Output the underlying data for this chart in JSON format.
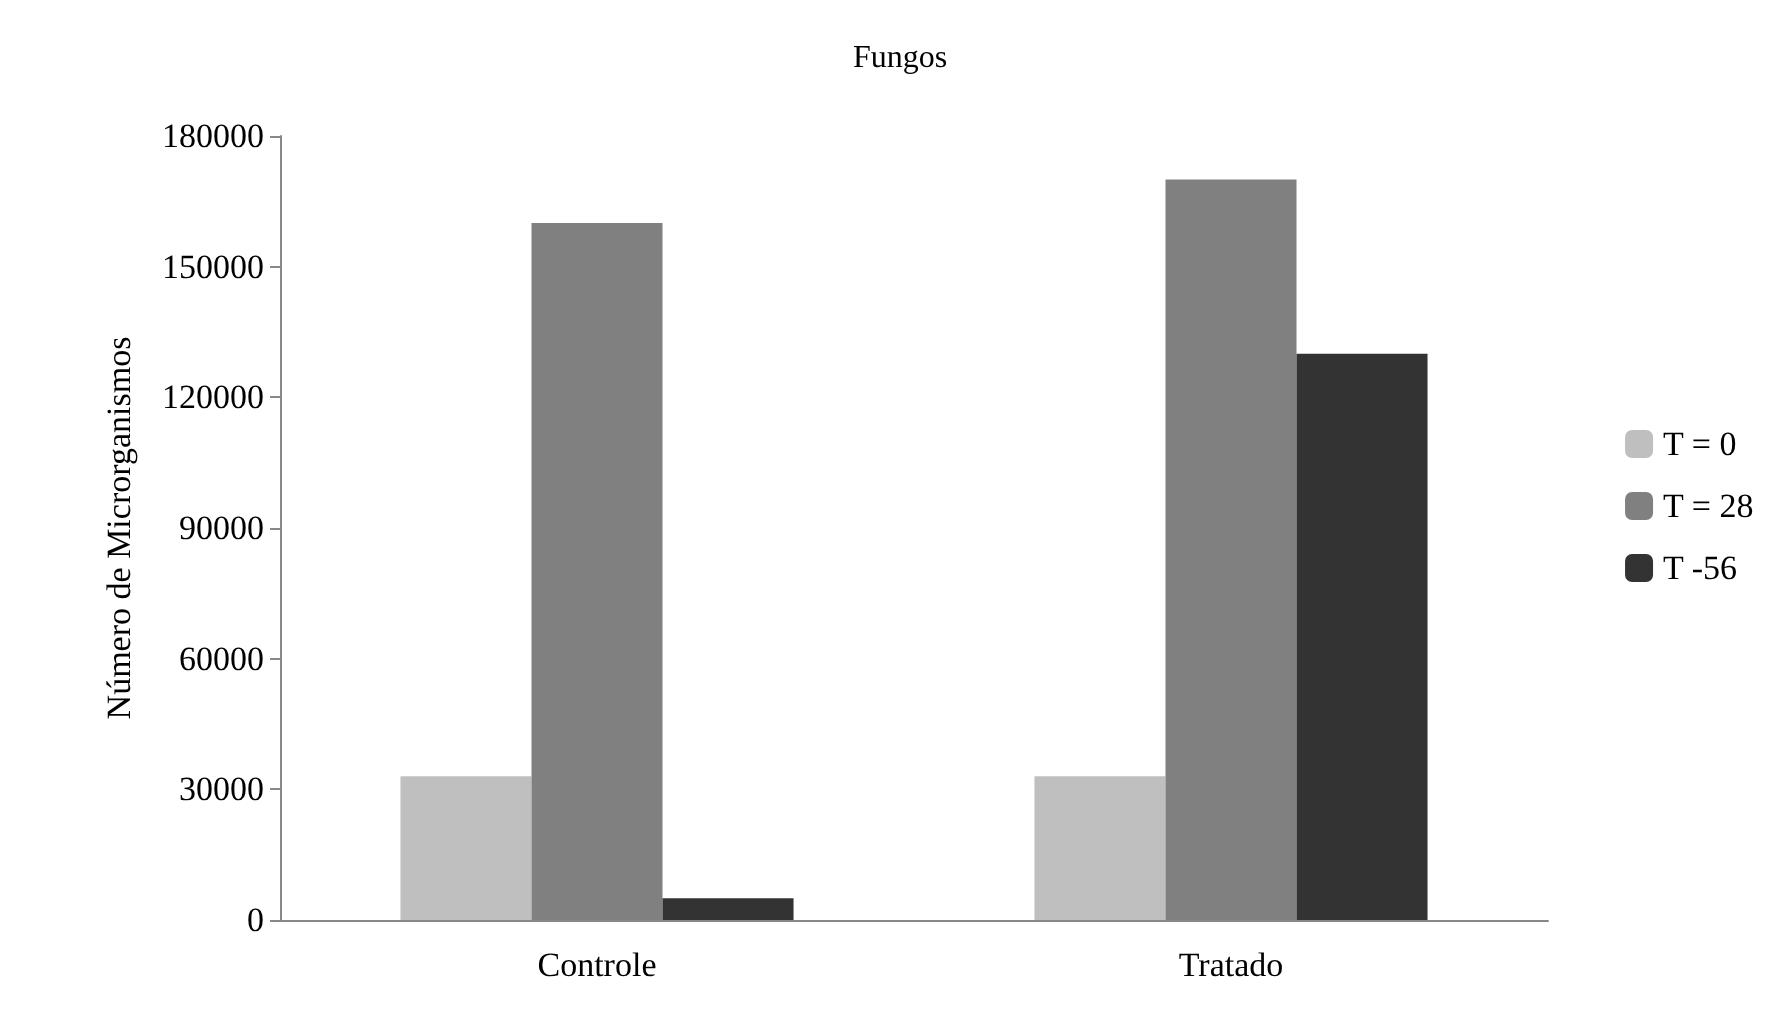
{
  "chart_data": {
    "type": "bar",
    "title": "Fungos",
    "ylabel": "Número de Microrganismos",
    "categories": [
      "Controle",
      "Tratado"
    ],
    "series": [
      {
        "name": "T = 0",
        "color": "#bfbfbf",
        "values": [
          33000,
          33000
        ]
      },
      {
        "name": "T = 28",
        "color": "#808080",
        "values": [
          160000,
          170000
        ]
      },
      {
        "name": "T -56",
        "color": "#333333",
        "values": [
          5000,
          130000
        ]
      }
    ],
    "ylim": [
      0,
      180000
    ],
    "yticks": [
      0,
      30000,
      60000,
      90000,
      120000,
      150000,
      180000
    ],
    "grid": false,
    "legend": "right"
  }
}
